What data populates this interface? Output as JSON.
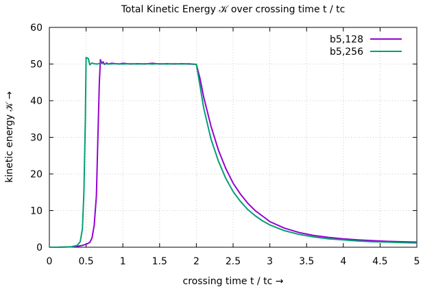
{
  "chart_data": {
    "type": "line",
    "title": "Total Kinetic Energy 𝒦 over crossing time t / tc",
    "xlabel": "crossing time t / tc  →",
    "ylabel": "kinetic energy 𝒦  →",
    "xlim": [
      0,
      5
    ],
    "ylim": [
      0,
      60
    ],
    "xticks": [
      "0",
      "0.5",
      "1",
      "1.5",
      "2",
      "2.5",
      "3",
      "3.5",
      "4",
      "4.5",
      "5"
    ],
    "yticks": [
      "0",
      "10",
      "20",
      "30",
      "40",
      "50",
      "60"
    ],
    "grid": true,
    "legend": "top-right",
    "series": [
      {
        "name": "b5,128",
        "color": "#9400d3",
        "points": [
          [
            0,
            0
          ],
          [
            0.1,
            0
          ],
          [
            0.2,
            0.05
          ],
          [
            0.3,
            0.1
          ],
          [
            0.4,
            0.3
          ],
          [
            0.45,
            0.5
          ],
          [
            0.5,
            0.8
          ],
          [
            0.55,
            1.3
          ],
          [
            0.58,
            2.5
          ],
          [
            0.61,
            6
          ],
          [
            0.64,
            14
          ],
          [
            0.66,
            30
          ],
          [
            0.68,
            45
          ],
          [
            0.695,
            51.2
          ],
          [
            0.71,
            50.2
          ],
          [
            0.73,
            50.6
          ],
          [
            0.75,
            49.9
          ],
          [
            0.78,
            50.3
          ],
          [
            0.8,
            50
          ],
          [
            0.85,
            50.2
          ],
          [
            0.9,
            50.1
          ],
          [
            0.95,
            50
          ],
          [
            1,
            50.2
          ],
          [
            1.1,
            50
          ],
          [
            1.2,
            50.1
          ],
          [
            1.3,
            50
          ],
          [
            1.4,
            50.2
          ],
          [
            1.5,
            50
          ],
          [
            1.6,
            50.1
          ],
          [
            1.7,
            50
          ],
          [
            1.8,
            50.1
          ],
          [
            1.9,
            50
          ],
          [
            2,
            49.9
          ],
          [
            2.05,
            46
          ],
          [
            2.1,
            41
          ],
          [
            2.2,
            33
          ],
          [
            2.3,
            26.5
          ],
          [
            2.4,
            21.5
          ],
          [
            2.5,
            17.5
          ],
          [
            2.6,
            14.5
          ],
          [
            2.7,
            12
          ],
          [
            2.8,
            10
          ],
          [
            2.9,
            8.5
          ],
          [
            3,
            7
          ],
          [
            3.2,
            5.2
          ],
          [
            3.4,
            4
          ],
          [
            3.6,
            3.2
          ],
          [
            3.8,
            2.7
          ],
          [
            4,
            2.3
          ],
          [
            4.2,
            2
          ],
          [
            4.4,
            1.8
          ],
          [
            4.6,
            1.6
          ],
          [
            4.8,
            1.5
          ],
          [
            5,
            1.4
          ]
        ]
      },
      {
        "name": "b5,256",
        "color": "#009e73",
        "points": [
          [
            0,
            0
          ],
          [
            0.1,
            0
          ],
          [
            0.2,
            0.05
          ],
          [
            0.3,
            0.15
          ],
          [
            0.38,
            0.5
          ],
          [
            0.42,
            1.5
          ],
          [
            0.45,
            5
          ],
          [
            0.47,
            15
          ],
          [
            0.49,
            35
          ],
          [
            0.5,
            51.8
          ],
          [
            0.53,
            51.5
          ],
          [
            0.55,
            49.8
          ],
          [
            0.58,
            50.3
          ],
          [
            0.6,
            50.1
          ],
          [
            0.65,
            50
          ],
          [
            0.7,
            50.2
          ],
          [
            0.8,
            50
          ],
          [
            0.9,
            50.1
          ],
          [
            1,
            50
          ],
          [
            1.1,
            50.1
          ],
          [
            1.2,
            50
          ],
          [
            1.3,
            50.1
          ],
          [
            1.4,
            50
          ],
          [
            1.5,
            50.1
          ],
          [
            1.6,
            50
          ],
          [
            1.7,
            50.1
          ],
          [
            1.8,
            50
          ],
          [
            1.9,
            50.1
          ],
          [
            2,
            49.9
          ],
          [
            2.05,
            44
          ],
          [
            2.1,
            38
          ],
          [
            2.2,
            29.5
          ],
          [
            2.3,
            23.5
          ],
          [
            2.4,
            18.8
          ],
          [
            2.5,
            15.2
          ],
          [
            2.6,
            12.5
          ],
          [
            2.7,
            10.3
          ],
          [
            2.8,
            8.6
          ],
          [
            2.9,
            7.2
          ],
          [
            3,
            6.1
          ],
          [
            3.2,
            4.5
          ],
          [
            3.4,
            3.5
          ],
          [
            3.6,
            2.8
          ],
          [
            3.8,
            2.3
          ],
          [
            4,
            2
          ],
          [
            4.2,
            1.7
          ],
          [
            4.4,
            1.5
          ],
          [
            4.6,
            1.4
          ],
          [
            4.8,
            1.25
          ],
          [
            5,
            1.15
          ]
        ]
      }
    ]
  }
}
